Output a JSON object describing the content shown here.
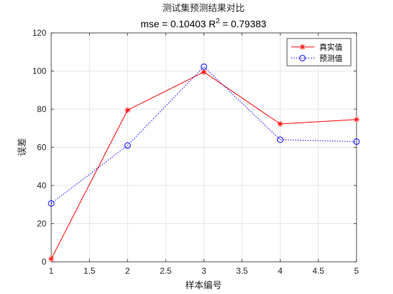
{
  "chart_data": {
    "type": "line",
    "title": "测试集预测结果对比",
    "subtitle": {
      "prefix": "mse = 0.10403 R",
      "sup": "2",
      "suffix": " = 0.79383"
    },
    "xlabel": "样本编号",
    "ylabel": "误差",
    "x": [
      1,
      2,
      3,
      4,
      5
    ],
    "xlim": [
      1,
      5
    ],
    "ylim": [
      0,
      120
    ],
    "xticks": [
      "1",
      "1.5",
      "2",
      "2.5",
      "3",
      "3.5",
      "4",
      "4.5",
      "5"
    ],
    "yticks": [
      "0",
      "20",
      "40",
      "60",
      "80",
      "100",
      "120"
    ],
    "grid": true,
    "legend_position": "top-right",
    "series": [
      {
        "name": "真实值",
        "values": [
          1.5,
          79.5,
          99.5,
          72.3,
          74.6
        ],
        "color": "#ff0000",
        "marker": "star",
        "line": "solid"
      },
      {
        "name": "预测值",
        "values": [
          30.6,
          61.0,
          102.3,
          64.0,
          63.0
        ],
        "color": "#0000ff",
        "marker": "circle",
        "line": "dotted"
      }
    ]
  }
}
